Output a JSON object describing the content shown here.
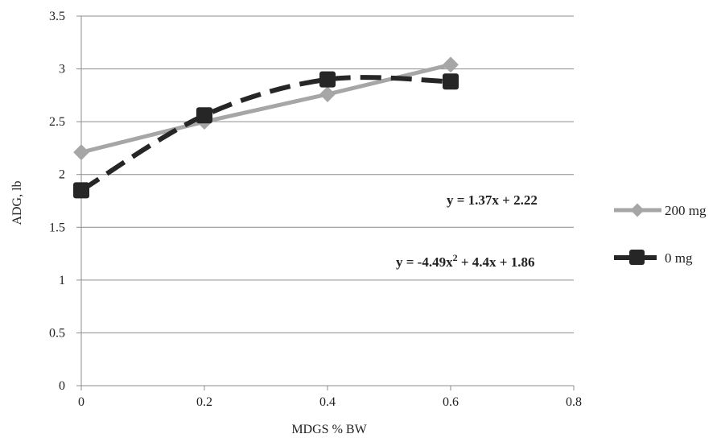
{
  "chart_data": {
    "type": "line",
    "xlabel": "MDGS % BW",
    "ylabel": "ADG, lb",
    "xlim": [
      0,
      0.8
    ],
    "ylim": [
      0,
      3.5
    ],
    "xticks": [
      "0",
      "0.2",
      "0.4",
      "0.6",
      "0.8"
    ],
    "yticks": [
      "0",
      "0.5",
      "1",
      "1.5",
      "2",
      "2.5",
      "3",
      "3.5"
    ],
    "grid": "horizontal",
    "legend_position": "right",
    "series": [
      {
        "name": "200 mg",
        "style": "solid",
        "color": "#a6a6a6",
        "marker": "diamond",
        "x": [
          0,
          0.2,
          0.4,
          0.6
        ],
        "y": [
          2.21,
          2.5,
          2.76,
          3.04
        ]
      },
      {
        "name": "0 mg",
        "style": "dashed",
        "color": "#262626",
        "marker": "square",
        "x": [
          0,
          0.2,
          0.4,
          0.6
        ],
        "y": [
          1.85,
          2.56,
          2.9,
          2.88
        ]
      }
    ],
    "annotations": {
      "linear_eq": "y = 1.37x + 2.22",
      "quad_eq_prefix": "y = -4.49x",
      "quad_eq_sup": "2",
      "quad_eq_suffix": " + 4.4x + 1.86"
    }
  }
}
